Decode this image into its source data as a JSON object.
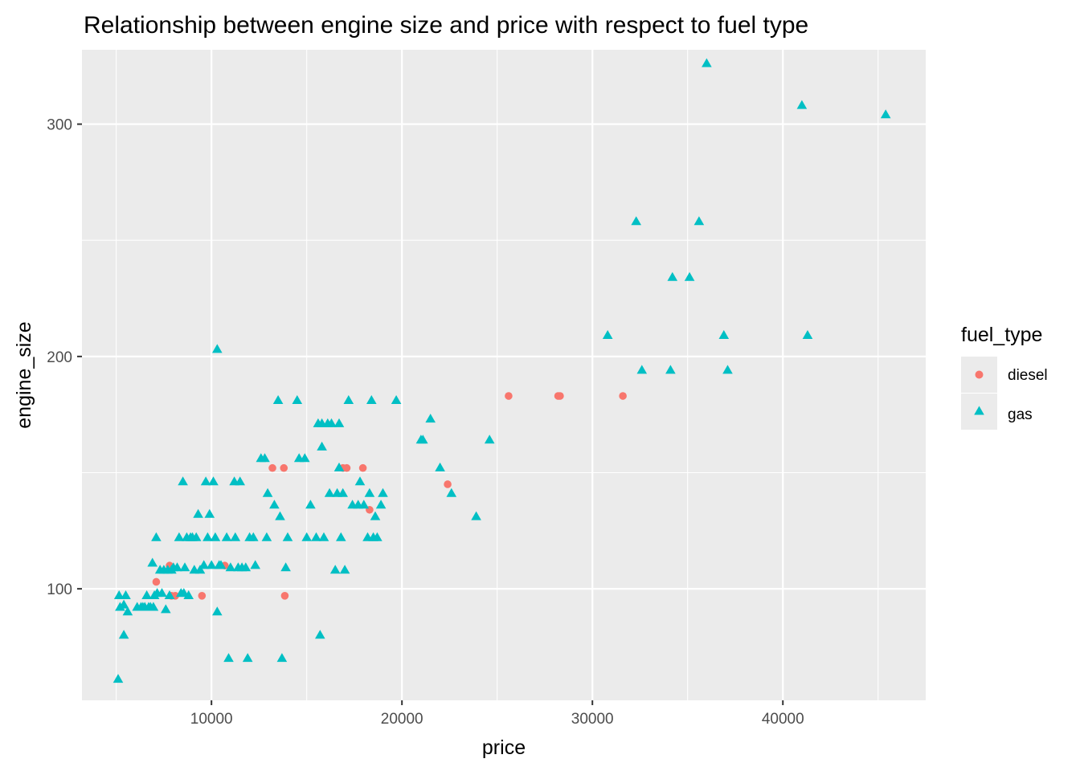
{
  "chart_data": {
    "type": "scatter",
    "title": "Relationship between engine size and price with respect to fuel type",
    "xlabel": "price",
    "ylabel": "engine_size",
    "xlim": [
      3200,
      47500
    ],
    "ylim": [
      52,
      332
    ],
    "x_ticks": [
      10000,
      20000,
      30000,
      40000
    ],
    "x_tick_labels": [
      "10000",
      "20000",
      "30000",
      "40000"
    ],
    "y_ticks": [
      100,
      200,
      300
    ],
    "y_tick_labels": [
      "100",
      "200",
      "300"
    ],
    "grid": true,
    "legend": {
      "title": "fuel_type",
      "position": "right",
      "entries": [
        {
          "label": "diesel",
          "color": "#F8766D",
          "shape": "circle"
        },
        {
          "label": "gas",
          "color": "#00BFC4",
          "shape": "triangle"
        }
      ]
    },
    "series": [
      {
        "name": "diesel",
        "color": "#F8766D",
        "shape": "circle",
        "points": [
          [
            7100,
            103
          ],
          [
            7800,
            110
          ],
          [
            7900,
            97
          ],
          [
            8100,
            97
          ],
          [
            9500,
            97
          ],
          [
            10700,
            110
          ],
          [
            13200,
            152
          ],
          [
            13800,
            152
          ],
          [
            13850,
            97
          ],
          [
            16900,
            152
          ],
          [
            17100,
            152
          ],
          [
            17950,
            152
          ],
          [
            18300,
            134
          ],
          [
            22400,
            145
          ],
          [
            25600,
            183
          ],
          [
            28200,
            183
          ],
          [
            28300,
            183
          ],
          [
            31600,
            183
          ]
        ]
      },
      {
        "name": "gas",
        "color": "#00BFC4",
        "shape": "triangle",
        "points": [
          [
            5100,
            61
          ],
          [
            5150,
            97
          ],
          [
            5200,
            92
          ],
          [
            5400,
            80
          ],
          [
            5500,
            97
          ],
          [
            5600,
            90
          ],
          [
            5400,
            93
          ],
          [
            6100,
            92
          ],
          [
            6300,
            92
          ],
          [
            6400,
            92
          ],
          [
            6500,
            92
          ],
          [
            6600,
            97
          ],
          [
            6700,
            92
          ],
          [
            6800,
            92
          ],
          [
            6900,
            111
          ],
          [
            6950,
            92
          ],
          [
            7000,
            97
          ],
          [
            7100,
            122
          ],
          [
            7150,
            98
          ],
          [
            7300,
            108
          ],
          [
            7400,
            98
          ],
          [
            7500,
            108
          ],
          [
            7600,
            91
          ],
          [
            7700,
            108
          ],
          [
            7800,
            97
          ],
          [
            7900,
            108
          ],
          [
            8000,
            109
          ],
          [
            8200,
            109
          ],
          [
            8300,
            122
          ],
          [
            8400,
            98
          ],
          [
            8500,
            146
          ],
          [
            8550,
            98
          ],
          [
            8600,
            109
          ],
          [
            8700,
            122
          ],
          [
            8800,
            97
          ],
          [
            8900,
            122
          ],
          [
            9000,
            122
          ],
          [
            9100,
            108
          ],
          [
            9200,
            122
          ],
          [
            9300,
            132
          ],
          [
            9400,
            108
          ],
          [
            9600,
            110
          ],
          [
            9700,
            146
          ],
          [
            9800,
            122
          ],
          [
            9900,
            132
          ],
          [
            10000,
            110
          ],
          [
            10100,
            146
          ],
          [
            10200,
            122
          ],
          [
            10300,
            203
          ],
          [
            10300,
            90
          ],
          [
            10400,
            110
          ],
          [
            10500,
            110
          ],
          [
            10800,
            122
          ],
          [
            10900,
            70
          ],
          [
            11000,
            109
          ],
          [
            11200,
            146
          ],
          [
            11250,
            122
          ],
          [
            11400,
            109
          ],
          [
            11500,
            146
          ],
          [
            11600,
            109
          ],
          [
            11800,
            109
          ],
          [
            11900,
            70
          ],
          [
            12000,
            122
          ],
          [
            12200,
            122
          ],
          [
            12300,
            110
          ],
          [
            12600,
            156
          ],
          [
            12800,
            156
          ],
          [
            12900,
            122
          ],
          [
            12950,
            141
          ],
          [
            13300,
            136
          ],
          [
            13500,
            181
          ],
          [
            13600,
            131
          ],
          [
            13700,
            70
          ],
          [
            13900,
            109
          ],
          [
            14000,
            122
          ],
          [
            14500,
            181
          ],
          [
            14600,
            156
          ],
          [
            14900,
            156
          ],
          [
            15000,
            122
          ],
          [
            15200,
            136
          ],
          [
            15500,
            122
          ],
          [
            15600,
            171
          ],
          [
            15700,
            80
          ],
          [
            15800,
            171
          ],
          [
            15800,
            161
          ],
          [
            15900,
            122
          ],
          [
            16100,
            171
          ],
          [
            16200,
            141
          ],
          [
            16300,
            171
          ],
          [
            16500,
            108
          ],
          [
            16600,
            141
          ],
          [
            16700,
            152
          ],
          [
            16700,
            171
          ],
          [
            16800,
            122
          ],
          [
            16900,
            141
          ],
          [
            17000,
            108
          ],
          [
            17200,
            181
          ],
          [
            17400,
            136
          ],
          [
            17700,
            136
          ],
          [
            17800,
            146
          ],
          [
            18000,
            136
          ],
          [
            18200,
            122
          ],
          [
            18300,
            141
          ],
          [
            18400,
            181
          ],
          [
            18500,
            122
          ],
          [
            18600,
            131
          ],
          [
            18700,
            122
          ],
          [
            18900,
            136
          ],
          [
            19000,
            141
          ],
          [
            19700,
            181
          ],
          [
            21000,
            164
          ],
          [
            21100,
            164
          ],
          [
            21500,
            173
          ],
          [
            22000,
            152
          ],
          [
            22600,
            141
          ],
          [
            23900,
            131
          ],
          [
            24600,
            164
          ],
          [
            30800,
            209
          ],
          [
            32300,
            258
          ],
          [
            32600,
            194
          ],
          [
            34100,
            194
          ],
          [
            34200,
            234
          ],
          [
            35100,
            234
          ],
          [
            35600,
            258
          ],
          [
            36000,
            326
          ],
          [
            36900,
            209
          ],
          [
            37100,
            194
          ],
          [
            41000,
            308
          ],
          [
            41300,
            209
          ],
          [
            45400,
            304
          ]
        ]
      }
    ]
  }
}
